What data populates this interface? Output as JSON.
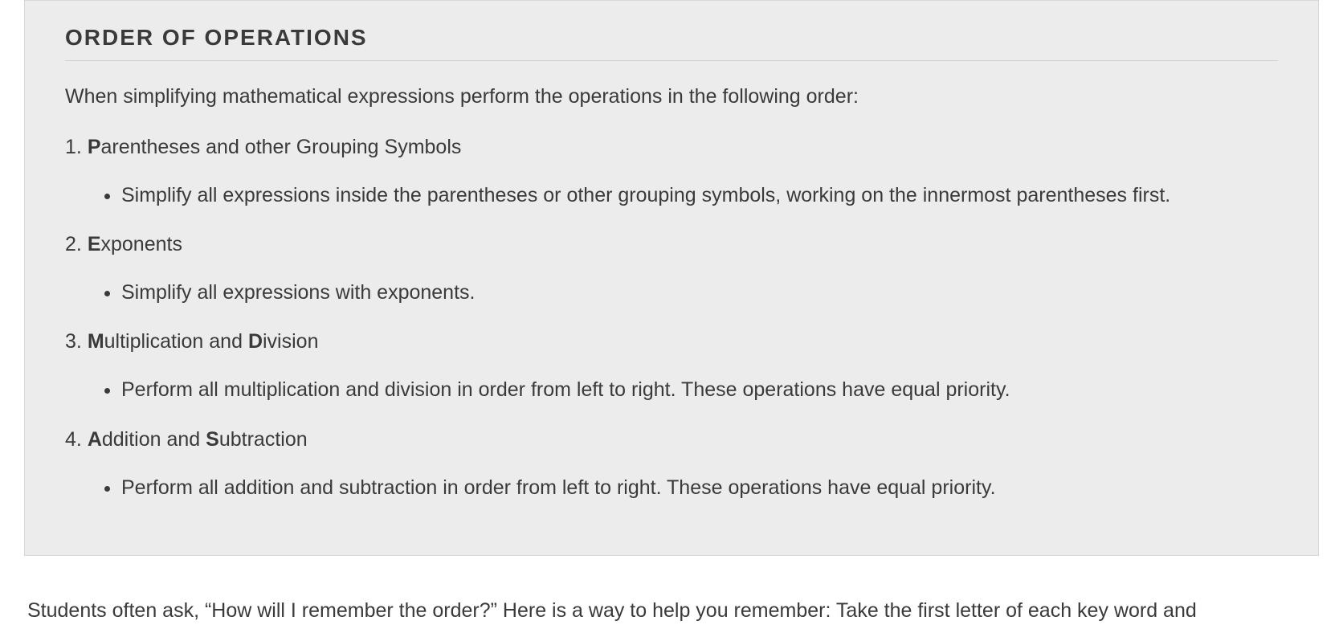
{
  "callout": {
    "title": "ORDER OF OPERATIONS",
    "intro": "When simplifying mathematical expressions perform the operations in the following order:",
    "background_color": "#ececec",
    "border_color": "#d8d8d8",
    "title_fontsize": 28,
    "body_fontsize": 25,
    "text_color": "#3a3a3a",
    "steps": [
      {
        "bold1": "P",
        "rest1": "arentheses and other Grouping Symbols",
        "bold2": "",
        "rest2": "",
        "bullet": "Simplify all expressions inside the parentheses or other grouping symbols, working on the innermost parentheses first."
      },
      {
        "bold1": "E",
        "rest1": "xponents",
        "bold2": "",
        "rest2": "",
        "bullet": "Simplify all expressions with exponents."
      },
      {
        "bold1": "M",
        "rest1": "ultiplication and ",
        "bold2": "D",
        "rest2": "ivision",
        "bullet": "Perform all multiplication and division in order from left to right. These operations have equal priority."
      },
      {
        "bold1": "A",
        "rest1": "ddition and ",
        "bold2": "S",
        "rest2": "ubtraction",
        "bullet": "Perform all addition and subtraction in order from left to right. These operations have equal priority."
      }
    ]
  },
  "body_paragraph": "Students often ask, “How will I remember the order?” Here is a way to help you remember: Take the first letter of each key word and"
}
